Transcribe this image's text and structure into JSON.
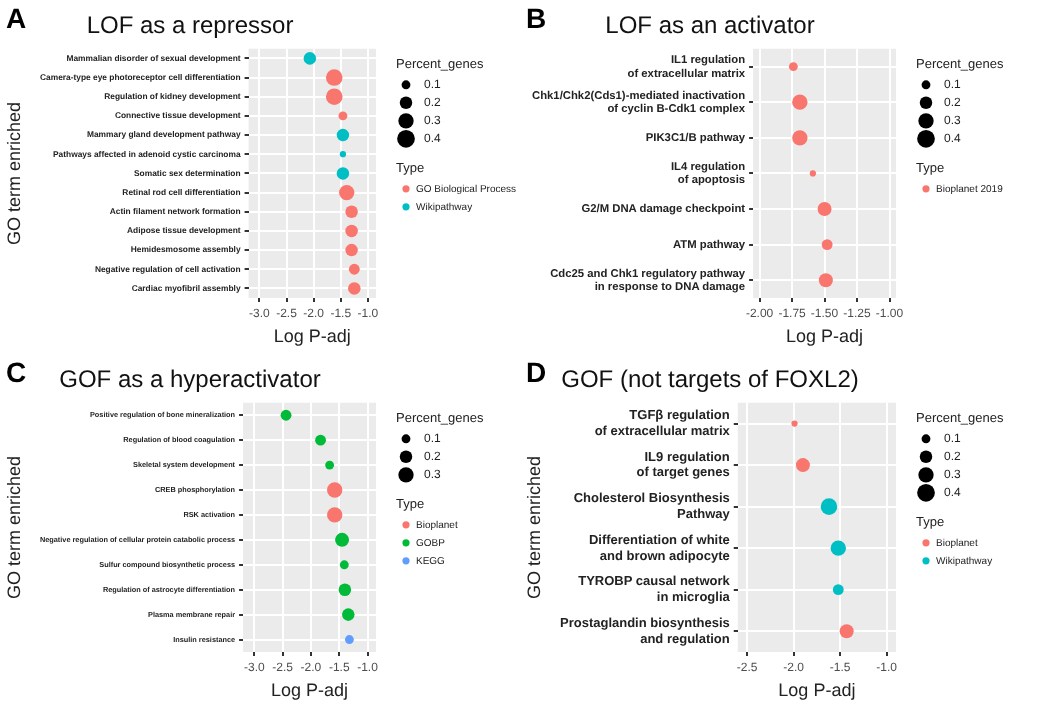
{
  "chart_data": [
    {
      "type": "bubble",
      "orientation": "horizontal",
      "title": "LOF as a repressor",
      "xlabel": "Log P-adj",
      "ylabel": "GO term enriched",
      "legend_title": "Type",
      "legend": "right",
      "grid": true,
      "annotations": [
        "A",
        "Percent_genes"
      ],
      "categories": [
        "Mammalian disorder of sexual development",
        "Camera-type eye photoreceptor cell differentiation",
        "Regulation of kidney development",
        "Connective tissue development",
        "Mammary gland development pathway",
        "Pathways affected in adenoid cystic carcinoma",
        "Somatic sex determination",
        "Retinal rod cell differentiation",
        "Actin filament network formation",
        "Adipose tissue development",
        "Hemidesmosome assembly",
        "Negative regulation of cell activation",
        "Cardiac myofibril assembly"
      ],
      "xlim": [
        -3.2,
        -0.85
      ],
      "xticks": [
        {
          "value": -3,
          "label": "-3.0"
        },
        -2.5,
        {
          "value": -2,
          "label": "-2.0"
        },
        -1.5,
        {
          "value": -1,
          "label": "-1.0"
        }
      ],
      "size_legend": [
        0.1,
        0.2,
        0.3,
        0.4
      ],
      "series": [
        {
          "name": "GO Biological Process",
          "color": "#f8766d",
          "values": [
            null,
            -1.62,
            -1.62,
            -1.46,
            null,
            null,
            null,
            -1.39,
            -1.3,
            -1.3,
            -1.3,
            -1.25,
            -1.25
          ],
          "sizes": [
            null,
            0.35,
            0.35,
            0.1,
            null,
            null,
            null,
            0.3,
            0.2,
            0.2,
            0.2,
            0.15,
            0.2
          ]
        },
        {
          "name": "Wikipathway",
          "color": "#00bfc4",
          "values": [
            -2.07,
            null,
            null,
            null,
            -1.46,
            -1.46,
            -1.46,
            null,
            null,
            null,
            null,
            null,
            null
          ],
          "sizes": [
            0.2,
            null,
            null,
            null,
            0.2,
            0.05,
            0.2,
            null,
            null,
            null,
            null,
            null,
            null
          ]
        }
      ]
    },
    {
      "type": "bubble",
      "orientation": "horizontal",
      "title": "LOF as an activator",
      "xlabel": "Log P-adj",
      "legend_title": "Type",
      "legend": "right",
      "grid": true,
      "annotations": [
        "B",
        "Percent_genes"
      ],
      "categories": [
        "IL1 regulation\nof extracellular matrix",
        "Chk1/Chk2(Cds1)-mediated inactivation\nof cyclin B-Cdk1 complex",
        "PIK3C1/B pathway",
        "IL4 regulation\nof apoptosis",
        "G2/M DNA damage checkpoint",
        "ATM pathway",
        "Cdc25 and Chk1 regulatory pathway\nin response to DNA damage"
      ],
      "xlim": [
        -2.05,
        -0.95
      ],
      "xticks": [
        {
          "value": -2,
          "label": "-2.00"
        },
        -1.75,
        {
          "value": -1.5,
          "label": "-1.50"
        },
        -1.25,
        {
          "value": -1,
          "label": "-1.00"
        }
      ],
      "size_legend": [
        0.1,
        0.2,
        0.3,
        0.4
      ],
      "series": [
        {
          "name": "Bioplanet 2019",
          "color": "#f8766d",
          "values": [
            -1.74,
            -1.69,
            -1.69,
            -1.59,
            -1.5,
            -1.48,
            -1.49
          ],
          "sizes": [
            0.1,
            0.3,
            0.3,
            0.05,
            0.25,
            0.15,
            0.25
          ]
        }
      ]
    },
    {
      "type": "bubble",
      "orientation": "horizontal",
      "title": "GOF as a hyperactivator",
      "xlabel": "Log P-adj",
      "ylabel": "GO term enriched",
      "legend_title": "Type",
      "legend": "right",
      "grid": true,
      "annotations": [
        "C",
        "Percent_genes"
      ],
      "categories": [
        "Positive regulation of bone mineralization",
        "Regulation of blood coagulation",
        "Skeletal system development",
        "CREB phosphorylation",
        "RSK activation",
        "Negative regulation of cellular protein catabolic process",
        "Sulfur compound biosynthetic process",
        "Regulation of astrocyte differentiation",
        "Plasma membrane repair",
        "Insulin resistance"
      ],
      "xlim": [
        -3.2,
        -0.85
      ],
      "xticks": [
        {
          "value": -3,
          "label": "-3.0"
        },
        -2.5,
        {
          "value": -2,
          "label": "-2.0"
        },
        -1.5,
        {
          "value": -1,
          "label": "-1.0"
        }
      ],
      "size_legend": [
        0.1,
        0.2,
        0.3
      ],
      "series": [
        {
          "name": "Bioplanet",
          "color": "#f8766d",
          "values": [
            null,
            null,
            null,
            -1.58,
            -1.58,
            null,
            null,
            null,
            null,
            null
          ],
          "sizes": [
            null,
            null,
            null,
            0.3,
            0.3,
            null,
            null,
            null,
            null,
            null
          ]
        },
        {
          "name": "GOBP",
          "color": "#00ba38",
          "values": [
            -2.44,
            -1.83,
            -1.67,
            null,
            null,
            -1.45,
            -1.41,
            -1.4,
            -1.34,
            null
          ],
          "sizes": [
            0.15,
            0.15,
            0.1,
            null,
            null,
            0.25,
            0.1,
            0.2,
            0.2,
            null
          ]
        },
        {
          "name": "KEGG",
          "color": "#619cff",
          "values": [
            null,
            null,
            null,
            null,
            null,
            null,
            null,
            null,
            null,
            -1.32
          ],
          "sizes": [
            null,
            null,
            null,
            null,
            null,
            null,
            null,
            null,
            null,
            0.1
          ]
        }
      ]
    },
    {
      "type": "bubble",
      "orientation": "horizontal",
      "title": "GOF (not targets of FOXL2)",
      "xlabel": "Log P-adj",
      "ylabel": "GO term enriched",
      "legend_title": "Type",
      "legend": "right",
      "grid": true,
      "annotations": [
        "D",
        "Percent_genes"
      ],
      "categories": [
        "TGFβ regulation\nof extracellular matrix",
        "IL9 regulation\nof target genes",
        "Cholesterol Biosynthesis\nPathway",
        "Differentiation of white\nand brown adipocyte",
        "TYROBP causal network\nin microglia",
        "Prostaglandin biosynthesis\nand regulation"
      ],
      "xlim": [
        -2.6,
        -0.9
      ],
      "xticks": [
        -2.5,
        {
          "value": -2,
          "label": "-2.0"
        },
        -1.5,
        {
          "value": -1,
          "label": "-1.0"
        }
      ],
      "size_legend": [
        0.1,
        0.2,
        0.3,
        0.4
      ],
      "series": [
        {
          "name": "Bioplanet",
          "color": "#f8766d",
          "values": [
            -1.99,
            -1.9,
            null,
            null,
            null,
            -1.43
          ],
          "sizes": [
            0.05,
            0.25,
            null,
            null,
            null,
            0.25
          ]
        },
        {
          "name": "Wikipathway",
          "color": "#00bfc4",
          "values": [
            null,
            null,
            -1.62,
            -1.52,
            -1.52,
            null
          ],
          "sizes": [
            null,
            null,
            0.35,
            0.3,
            0.15,
            null
          ]
        }
      ]
    }
  ]
}
